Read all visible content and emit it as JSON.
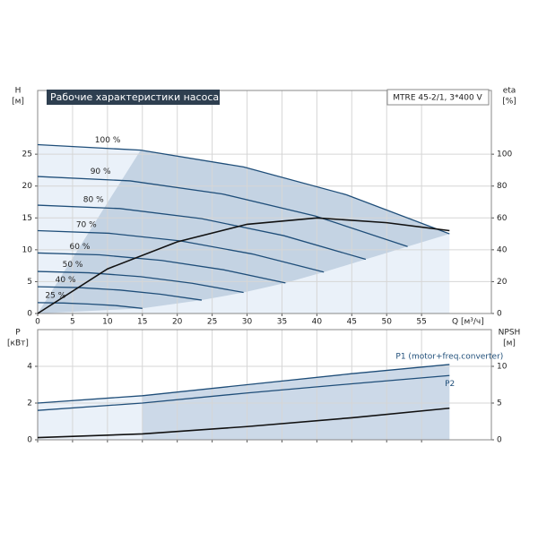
{
  "chart_data": [
    {
      "type": "line",
      "title": "Рабочие характеристики насоса",
      "model": "MTRE 45-2/1, 3*400 V",
      "ylabel": "H",
      "yunit": "[м]",
      "y2label": "eta",
      "y2unit": "[%]",
      "xlabel": "Q [м³/ч]",
      "xlim": [
        0,
        65
      ],
      "xticks": [
        0,
        5,
        10,
        15,
        20,
        25,
        30,
        35,
        40,
        45,
        50,
        55
      ],
      "ylim": [
        0,
        35
      ],
      "yticks": [
        0,
        5,
        10,
        15,
        20,
        25
      ],
      "y2lim": [
        0,
        140
      ],
      "y2ticks": [
        0,
        20,
        40,
        60,
        80,
        100
      ],
      "grid": true,
      "series": [
        {
          "name": "100 %",
          "color": "#1f4e79",
          "x": [
            0,
            14.75,
            29.5,
            44.25,
            59
          ],
          "values": [
            26.5,
            25.63,
            23.0,
            18.63,
            12.5
          ]
        },
        {
          "name": "90 %",
          "color": "#1f4e79",
          "x": [
            0,
            13.25,
            26.5,
            39.75,
            53
          ],
          "values": [
            21.5,
            20.81,
            18.75,
            15.31,
            10.5
          ]
        },
        {
          "name": "80 %",
          "color": "#1f4e79",
          "x": [
            0,
            11.75,
            23.5,
            35.25,
            47
          ],
          "values": [
            17,
            16.47,
            14.88,
            12.22,
            8.5
          ]
        },
        {
          "name": "70 %",
          "color": "#1f4e79",
          "x": [
            0,
            10.25,
            20.5,
            30.75,
            41
          ],
          "values": [
            13,
            12.59,
            11.38,
            9.34,
            6.5
          ]
        },
        {
          "name": "60 %",
          "color": "#1f4e79",
          "x": [
            0,
            8.88,
            17.75,
            26.63,
            35.5
          ],
          "values": [
            9.5,
            9.21,
            8.33,
            6.86,
            4.8
          ]
        },
        {
          "name": "50 %",
          "color": "#1f4e79",
          "x": [
            0,
            7.38,
            14.75,
            22.13,
            29.5
          ],
          "values": [
            6.6,
            6.39,
            5.78,
            4.74,
            3.3
          ]
        },
        {
          "name": "40 %",
          "color": "#1f4e79",
          "x": [
            0,
            5.88,
            11.75,
            17.63,
            23.5
          ],
          "values": [
            4.2,
            4.07,
            3.68,
            3.02,
            2.1
          ]
        },
        {
          "name": "25 %",
          "color": "#1f4e79",
          "x": [
            0,
            3.75,
            7.5,
            11.25,
            15
          ],
          "values": [
            1.7,
            1.64,
            1.48,
            1.24,
            0.8
          ]
        },
        {
          "color": "#111111",
          "axis": "y2",
          "x": [
            0,
            10,
            20,
            30,
            40,
            50,
            59
          ],
          "values": [
            0,
            28,
            45,
            56,
            60,
            57,
            52
          ]
        }
      ]
    },
    {
      "type": "line",
      "ylabel": "P",
      "yunit": "[кВт]",
      "y2label": "NPSH",
      "y2unit": "[м]",
      "xlim": [
        0,
        65
      ],
      "xticks": [
        0,
        5,
        10,
        15,
        20,
        25,
        30,
        35,
        40,
        45,
        50,
        55
      ],
      "ylim": [
        0,
        6
      ],
      "yticks": [
        0,
        2,
        4
      ],
      "y2lim": [
        0,
        15
      ],
      "y2ticks": [
        0,
        5,
        10
      ],
      "grid": true,
      "series": [
        {
          "name": "P1 (motor+freq.converter)",
          "color": "#1f4e79",
          "x": [
            0,
            15,
            30,
            45,
            59
          ],
          "values": [
            2.0,
            2.4,
            3.0,
            3.6,
            4.1
          ]
        },
        {
          "name": "P2",
          "color": "#1f4e79",
          "x": [
            0,
            15,
            30,
            45,
            59
          ],
          "values": [
            1.6,
            2.0,
            2.55,
            3.05,
            3.5
          ]
        },
        {
          "color": "#111111",
          "axis": "y2",
          "x": [
            0,
            15,
            30,
            45,
            59
          ],
          "values": [
            0.3,
            0.8,
            1.8,
            3.0,
            4.3
          ]
        }
      ]
    }
  ]
}
